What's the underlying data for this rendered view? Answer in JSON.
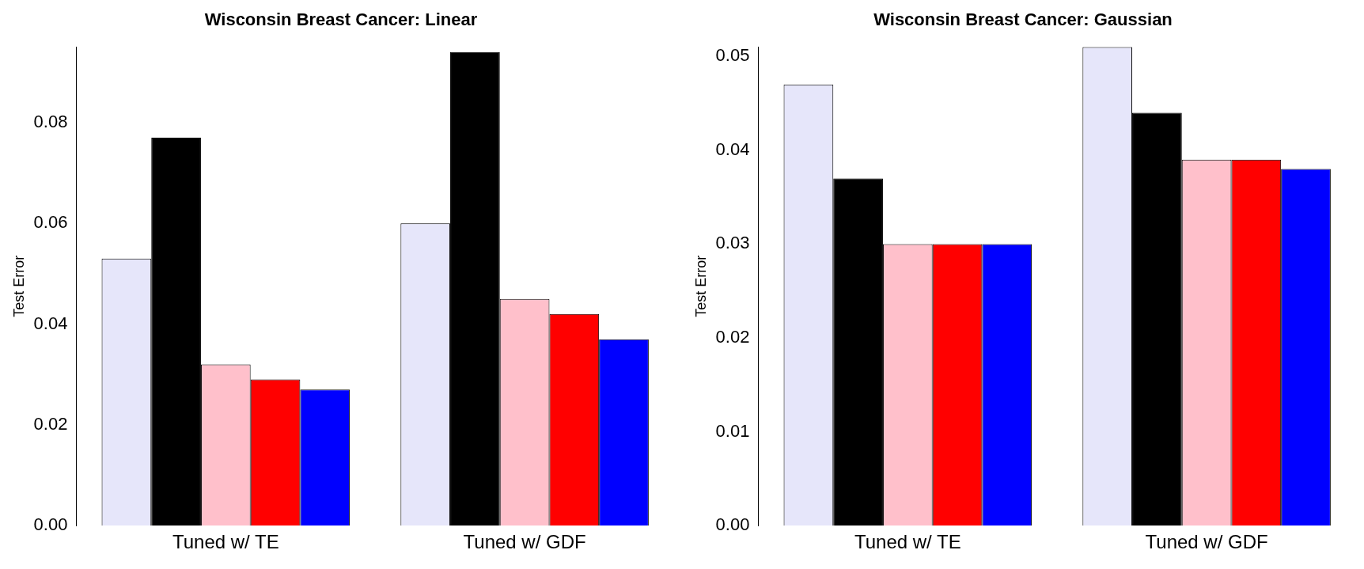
{
  "chart_data": [
    {
      "type": "bar",
      "title": "Wisconsin Breast Cancer: Linear",
      "ylabel": "Test Error",
      "categories": [
        "Tuned w/ TE",
        "Tuned w/ GDF"
      ],
      "series": [
        {
          "color": "#e6e6fa",
          "values": [
            0.053,
            0.06
          ]
        },
        {
          "color": "#000000",
          "values": [
            0.077,
            0.094
          ]
        },
        {
          "color": "#ffc0cb",
          "values": [
            0.032,
            0.045
          ]
        },
        {
          "color": "#ff0000",
          "values": [
            0.029,
            0.042
          ]
        },
        {
          "color": "#0000ff",
          "values": [
            0.027,
            0.037
          ]
        }
      ],
      "ylim": [
        0,
        0.095
      ],
      "yticks": [
        {
          "value": 0,
          "label": "0.00"
        },
        {
          "value": 0.02,
          "label": "0.02"
        },
        {
          "value": 0.04,
          "label": "0.04"
        },
        {
          "value": 0.06,
          "label": "0.06"
        },
        {
          "value": 0.08,
          "label": "0.08"
        }
      ],
      "grid": false,
      "legend": false
    },
    {
      "type": "bar",
      "title": "Wisconsin Breast Cancer: Gaussian",
      "ylabel": "Test Error",
      "categories": [
        "Tuned w/ TE",
        "Tuned w/ GDF"
      ],
      "series": [
        {
          "color": "#e6e6fa",
          "values": [
            0.047,
            0.051
          ]
        },
        {
          "color": "#000000",
          "values": [
            0.037,
            0.044
          ]
        },
        {
          "color": "#ffc0cb",
          "values": [
            0.03,
            0.039
          ]
        },
        {
          "color": "#ff0000",
          "values": [
            0.03,
            0.039
          ]
        },
        {
          "color": "#0000ff",
          "values": [
            0.03,
            0.038
          ]
        }
      ],
      "ylim": [
        0,
        0.051
      ],
      "yticks": [
        {
          "value": 0,
          "label": "0.00"
        },
        {
          "value": 0.01,
          "label": "0.01"
        },
        {
          "value": 0.02,
          "label": "0.02"
        },
        {
          "value": 0.03,
          "label": "0.03"
        },
        {
          "value": 0.04,
          "label": "0.04"
        },
        {
          "value": 0.05,
          "label": "0.05"
        }
      ],
      "grid": false,
      "legend": false
    }
  ]
}
